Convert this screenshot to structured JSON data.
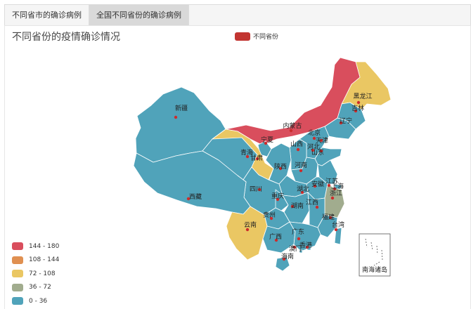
{
  "tabs": [
    {
      "label": "不同省市的确诊病例",
      "active": false
    },
    {
      "label": "全国不同省份的确诊病例",
      "active": true
    }
  ],
  "chart": {
    "title": "不同省份的疫情确诊情况",
    "legend_label": "不同省份",
    "legend_color": "#c23531"
  },
  "visual_map": [
    {
      "label": "144 - 180",
      "color": "#d94e5d"
    },
    {
      "label": "108 - 144",
      "color": "#e09051"
    },
    {
      "label": "72 - 108",
      "color": "#eac763"
    },
    {
      "label": "36 - 72",
      "color": "#a1ac8e"
    },
    {
      "label": "0 - 36",
      "color": "#50a3ba"
    }
  ],
  "provinces": [
    {
      "name": "黑龙江",
      "band": "72 - 108"
    },
    {
      "name": "吉林",
      "band": "0 - 36"
    },
    {
      "name": "辽宁",
      "band": "0 - 36"
    },
    {
      "name": "内蒙古",
      "band": "144 - 180"
    },
    {
      "name": "新疆",
      "band": "0 - 36"
    },
    {
      "name": "宁夏",
      "band": "0 - 36"
    },
    {
      "name": "北京",
      "band": "0 - 36"
    },
    {
      "name": "天津",
      "band": "0 - 36"
    },
    {
      "name": "河北",
      "band": "0 - 36"
    },
    {
      "name": "山西",
      "band": "0 - 36"
    },
    {
      "name": "山东",
      "band": "0 - 36"
    },
    {
      "name": "青海",
      "band": "0 - 36"
    },
    {
      "name": "甘肃",
      "band": "72 - 108"
    },
    {
      "name": "陕西",
      "band": "0 - 36"
    },
    {
      "name": "河南",
      "band": "0 - 36"
    },
    {
      "name": "江苏",
      "band": "0 - 36"
    },
    {
      "name": "安徽",
      "band": "0 - 36"
    },
    {
      "name": "上海",
      "band": "0 - 36"
    },
    {
      "name": "湖北",
      "band": "0 - 36"
    },
    {
      "name": "浙江",
      "band": "36 - 72"
    },
    {
      "name": "四川",
      "band": "0 - 36"
    },
    {
      "name": "重庆",
      "band": "0 - 36"
    },
    {
      "name": "西藏",
      "band": "0 - 36"
    },
    {
      "name": "湖南",
      "band": "0 - 36"
    },
    {
      "name": "江西",
      "band": "0 - 36"
    },
    {
      "name": "贵州",
      "band": "0 - 36"
    },
    {
      "name": "福建",
      "band": "0 - 36"
    },
    {
      "name": "台湾",
      "band": "0 - 36"
    },
    {
      "name": "云南",
      "band": "72 - 108"
    },
    {
      "name": "广西",
      "band": "0 - 36"
    },
    {
      "name": "广东",
      "band": "0 - 36"
    },
    {
      "name": "香港",
      "band": "0 - 36"
    },
    {
      "name": "澳门",
      "band": "0 - 36"
    },
    {
      "name": "海南",
      "band": "0 - 36"
    }
  ],
  "inset_label": "南海诸岛"
}
